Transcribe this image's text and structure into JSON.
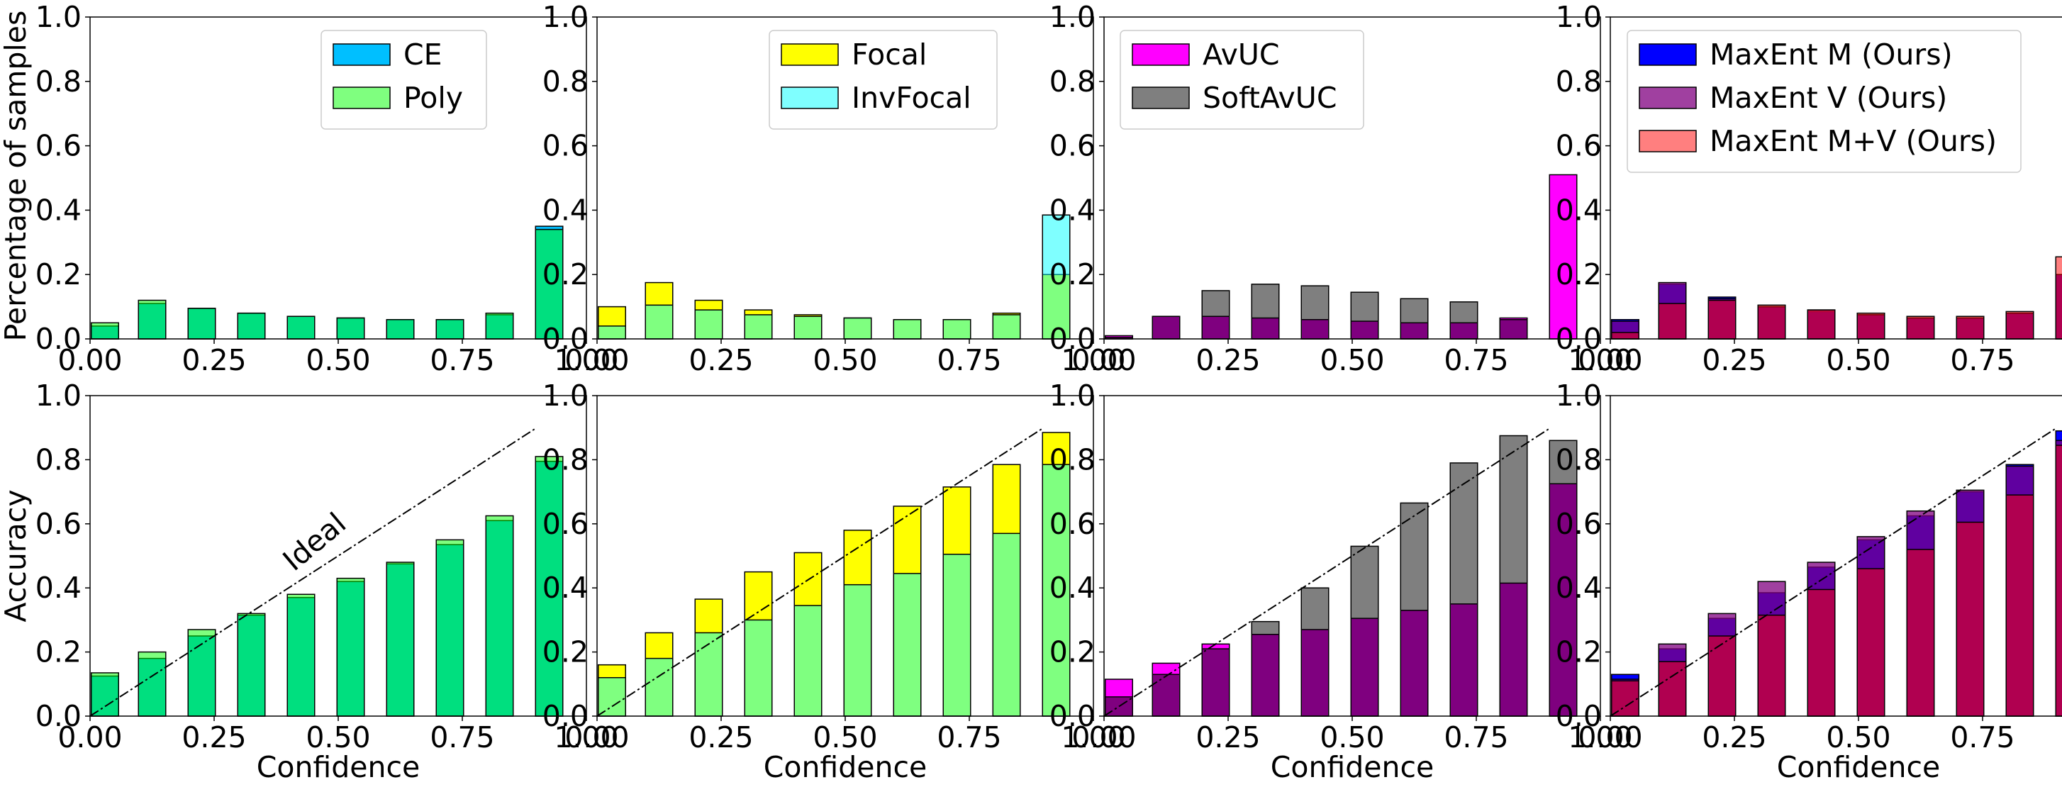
{
  "figure": {
    "bottom_xlabel": "Confidence",
    "top_ylabel": "Percentage of samples",
    "bottom_ylabel": "Accuracy",
    "ideal_label": "Ideal",
    "xticks": [
      "0.00",
      "0.25",
      "0.50",
      "0.75",
      "1.00"
    ],
    "yticks": [
      "0.0",
      "0.2",
      "0.4",
      "0.6",
      "0.8",
      "1.0"
    ]
  },
  "chart_data": [
    {
      "id": "top-1",
      "type": "bar",
      "row": "top",
      "xlabel": "",
      "ylabel": "Percentage of samples",
      "xlim": [
        0,
        1
      ],
      "ylim": [
        0,
        1
      ],
      "legend_position": "top-right",
      "bin_centers": [
        0.03,
        0.125,
        0.225,
        0.325,
        0.425,
        0.525,
        0.625,
        0.725,
        0.825,
        0.925
      ],
      "series": [
        {
          "name": "CE",
          "color": "#00bfff",
          "alpha": 1.0,
          "values": [
            0.04,
            0.11,
            0.095,
            0.08,
            0.07,
            0.065,
            0.06,
            0.06,
            0.075,
            0.35
          ]
        },
        {
          "name": "Poly",
          "color": "#00ff00",
          "alpha": 0.5,
          "values": [
            0.05,
            0.12,
            0.095,
            0.08,
            0.07,
            0.065,
            0.06,
            0.06,
            0.08,
            0.34
          ]
        }
      ]
    },
    {
      "id": "top-2",
      "type": "bar",
      "row": "top",
      "xlabel": "",
      "ylabel": "",
      "xlim": [
        0,
        1
      ],
      "ylim": [
        0,
        1
      ],
      "legend_position": "top-right",
      "bin_centers": [
        0.03,
        0.125,
        0.225,
        0.325,
        0.425,
        0.525,
        0.625,
        0.725,
        0.825,
        0.925
      ],
      "series": [
        {
          "name": "Focal",
          "color": "#ffff00",
          "alpha": 1.0,
          "values": [
            0.1,
            0.175,
            0.12,
            0.09,
            0.075,
            0.065,
            0.06,
            0.06,
            0.08,
            0.2
          ]
        },
        {
          "name": "InvFocal",
          "color": "#00ffff",
          "alpha": 0.5,
          "values": [
            0.04,
            0.105,
            0.09,
            0.075,
            0.07,
            0.065,
            0.06,
            0.06,
            0.075,
            0.385
          ]
        }
      ]
    },
    {
      "id": "top-3",
      "type": "bar",
      "row": "top",
      "xlabel": "",
      "ylabel": "",
      "xlim": [
        0,
        1
      ],
      "ylim": [
        0,
        1
      ],
      "legend_position": "top-left",
      "bin_centers": [
        0.03,
        0.125,
        0.225,
        0.325,
        0.425,
        0.525,
        0.625,
        0.725,
        0.825,
        0.925
      ],
      "series": [
        {
          "name": "AvUC",
          "color": "#ff00ff",
          "alpha": 1.0,
          "values": [
            0.01,
            0.07,
            0.07,
            0.065,
            0.06,
            0.055,
            0.05,
            0.05,
            0.065,
            0.51
          ]
        },
        {
          "name": "SoftAvUC",
          "color": "#000000",
          "alpha": 0.5,
          "values": [
            0.005,
            0.07,
            0.15,
            0.17,
            0.165,
            0.145,
            0.125,
            0.115,
            0.06,
            0.0
          ]
        }
      ]
    },
    {
      "id": "top-4",
      "type": "bar",
      "row": "top",
      "xlabel": "",
      "ylabel": "",
      "xlim": [
        0,
        1
      ],
      "ylim": [
        0,
        1
      ],
      "legend_position": "top-right",
      "bin_centers": [
        0.03,
        0.125,
        0.225,
        0.325,
        0.425,
        0.525,
        0.625,
        0.725,
        0.825,
        0.925
      ],
      "series": [
        {
          "name": "MaxEnt M (Ours)",
          "color": "#0000ff",
          "alpha": 1.0,
          "values": [
            0.06,
            0.17,
            0.13,
            0.1,
            0.085,
            0.075,
            0.065,
            0.065,
            0.08,
            0.2
          ]
        },
        {
          "name": "MaxEnt V (Ours)",
          "color": "#800080",
          "alpha": 0.75,
          "values": [
            0.055,
            0.175,
            0.125,
            0.1,
            0.09,
            0.075,
            0.065,
            0.065,
            0.08,
            0.2
          ]
        },
        {
          "name": "MaxEnt M+V (Ours)",
          "color": "#ff0000",
          "alpha": 0.5,
          "values": [
            0.02,
            0.11,
            0.12,
            0.105,
            0.09,
            0.08,
            0.07,
            0.07,
            0.085,
            0.255
          ]
        }
      ]
    },
    {
      "id": "bottom-1",
      "type": "bar",
      "row": "bottom",
      "xlabel": "Confidence",
      "ylabel": "Accuracy",
      "xlim": [
        0,
        1
      ],
      "ylim": [
        0,
        1
      ],
      "ideal_line": [
        [
          0,
          0
        ],
        [
          0.9,
          0.9
        ]
      ],
      "show_ideal_label": true,
      "bin_centers": [
        0.03,
        0.125,
        0.225,
        0.325,
        0.425,
        0.525,
        0.625,
        0.725,
        0.825,
        0.925
      ],
      "series": [
        {
          "name": "CE",
          "color": "#00bfff",
          "alpha": 1.0,
          "values": [
            0.125,
            0.18,
            0.25,
            0.315,
            0.37,
            0.42,
            0.475,
            0.535,
            0.61,
            0.795
          ]
        },
        {
          "name": "Poly",
          "color": "#00ff00",
          "alpha": 0.5,
          "values": [
            0.135,
            0.2,
            0.27,
            0.32,
            0.38,
            0.43,
            0.48,
            0.55,
            0.625,
            0.81
          ]
        }
      ]
    },
    {
      "id": "bottom-2",
      "type": "bar",
      "row": "bottom",
      "xlabel": "Confidence",
      "ylabel": "",
      "xlim": [
        0,
        1
      ],
      "ylim": [
        0,
        1
      ],
      "ideal_line": [
        [
          0,
          0
        ],
        [
          0.9,
          0.9
        ]
      ],
      "show_ideal_label": false,
      "bin_centers": [
        0.03,
        0.125,
        0.225,
        0.325,
        0.425,
        0.525,
        0.625,
        0.725,
        0.825,
        0.925
      ],
      "series": [
        {
          "name": "Focal",
          "color": "#ffff00",
          "alpha": 1.0,
          "values": [
            0.16,
            0.26,
            0.365,
            0.45,
            0.51,
            0.58,
            0.655,
            0.715,
            0.785,
            0.885
          ]
        },
        {
          "name": "InvFocal",
          "color": "#00ffff",
          "alpha": 0.5,
          "values": [
            0.12,
            0.18,
            0.26,
            0.3,
            0.345,
            0.41,
            0.445,
            0.505,
            0.57,
            0.785
          ]
        }
      ]
    },
    {
      "id": "bottom-3",
      "type": "bar",
      "row": "bottom",
      "xlabel": "Confidence",
      "ylabel": "",
      "xlim": [
        0,
        1
      ],
      "ylim": [
        0,
        1
      ],
      "ideal_line": [
        [
          0,
          0
        ],
        [
          0.9,
          0.9
        ]
      ],
      "show_ideal_label": false,
      "bin_centers": [
        0.03,
        0.125,
        0.225,
        0.325,
        0.425,
        0.525,
        0.625,
        0.725,
        0.825,
        0.925
      ],
      "series": [
        {
          "name": "AvUC",
          "color": "#ff00ff",
          "alpha": 1.0,
          "values": [
            0.115,
            0.165,
            0.225,
            0.255,
            0.27,
            0.305,
            0.33,
            0.35,
            0.415,
            0.725
          ]
        },
        {
          "name": "SoftAvUC",
          "color": "#000000",
          "alpha": 0.5,
          "values": [
            0.06,
            0.13,
            0.21,
            0.295,
            0.4,
            0.53,
            0.665,
            0.79,
            0.875,
            0.86
          ]
        }
      ]
    },
    {
      "id": "bottom-4",
      "type": "bar",
      "row": "bottom",
      "xlabel": "Confidence",
      "ylabel": "",
      "xlim": [
        0,
        1
      ],
      "ylim": [
        0,
        1
      ],
      "ideal_line": [
        [
          0,
          0
        ],
        [
          0.9,
          0.9
        ]
      ],
      "show_ideal_label": false,
      "bin_centers": [
        0.03,
        0.125,
        0.225,
        0.325,
        0.425,
        0.525,
        0.625,
        0.725,
        0.825,
        0.925
      ],
      "series": [
        {
          "name": "MaxEnt M (Ours)",
          "color": "#0000ff",
          "alpha": 1.0,
          "values": [
            0.13,
            0.21,
            0.305,
            0.385,
            0.465,
            0.55,
            0.625,
            0.7,
            0.785,
            0.89
          ]
        },
        {
          "name": "MaxEnt V (Ours)",
          "color": "#800080",
          "alpha": 0.75,
          "values": [
            0.115,
            0.225,
            0.32,
            0.42,
            0.48,
            0.56,
            0.64,
            0.705,
            0.78,
            0.86
          ]
        },
        {
          "name": "MaxEnt M+V (Ours)",
          "color": "#ff0000",
          "alpha": 0.5,
          "values": [
            0.11,
            0.17,
            0.25,
            0.315,
            0.395,
            0.46,
            0.52,
            0.605,
            0.69,
            0.845
          ]
        }
      ]
    }
  ]
}
